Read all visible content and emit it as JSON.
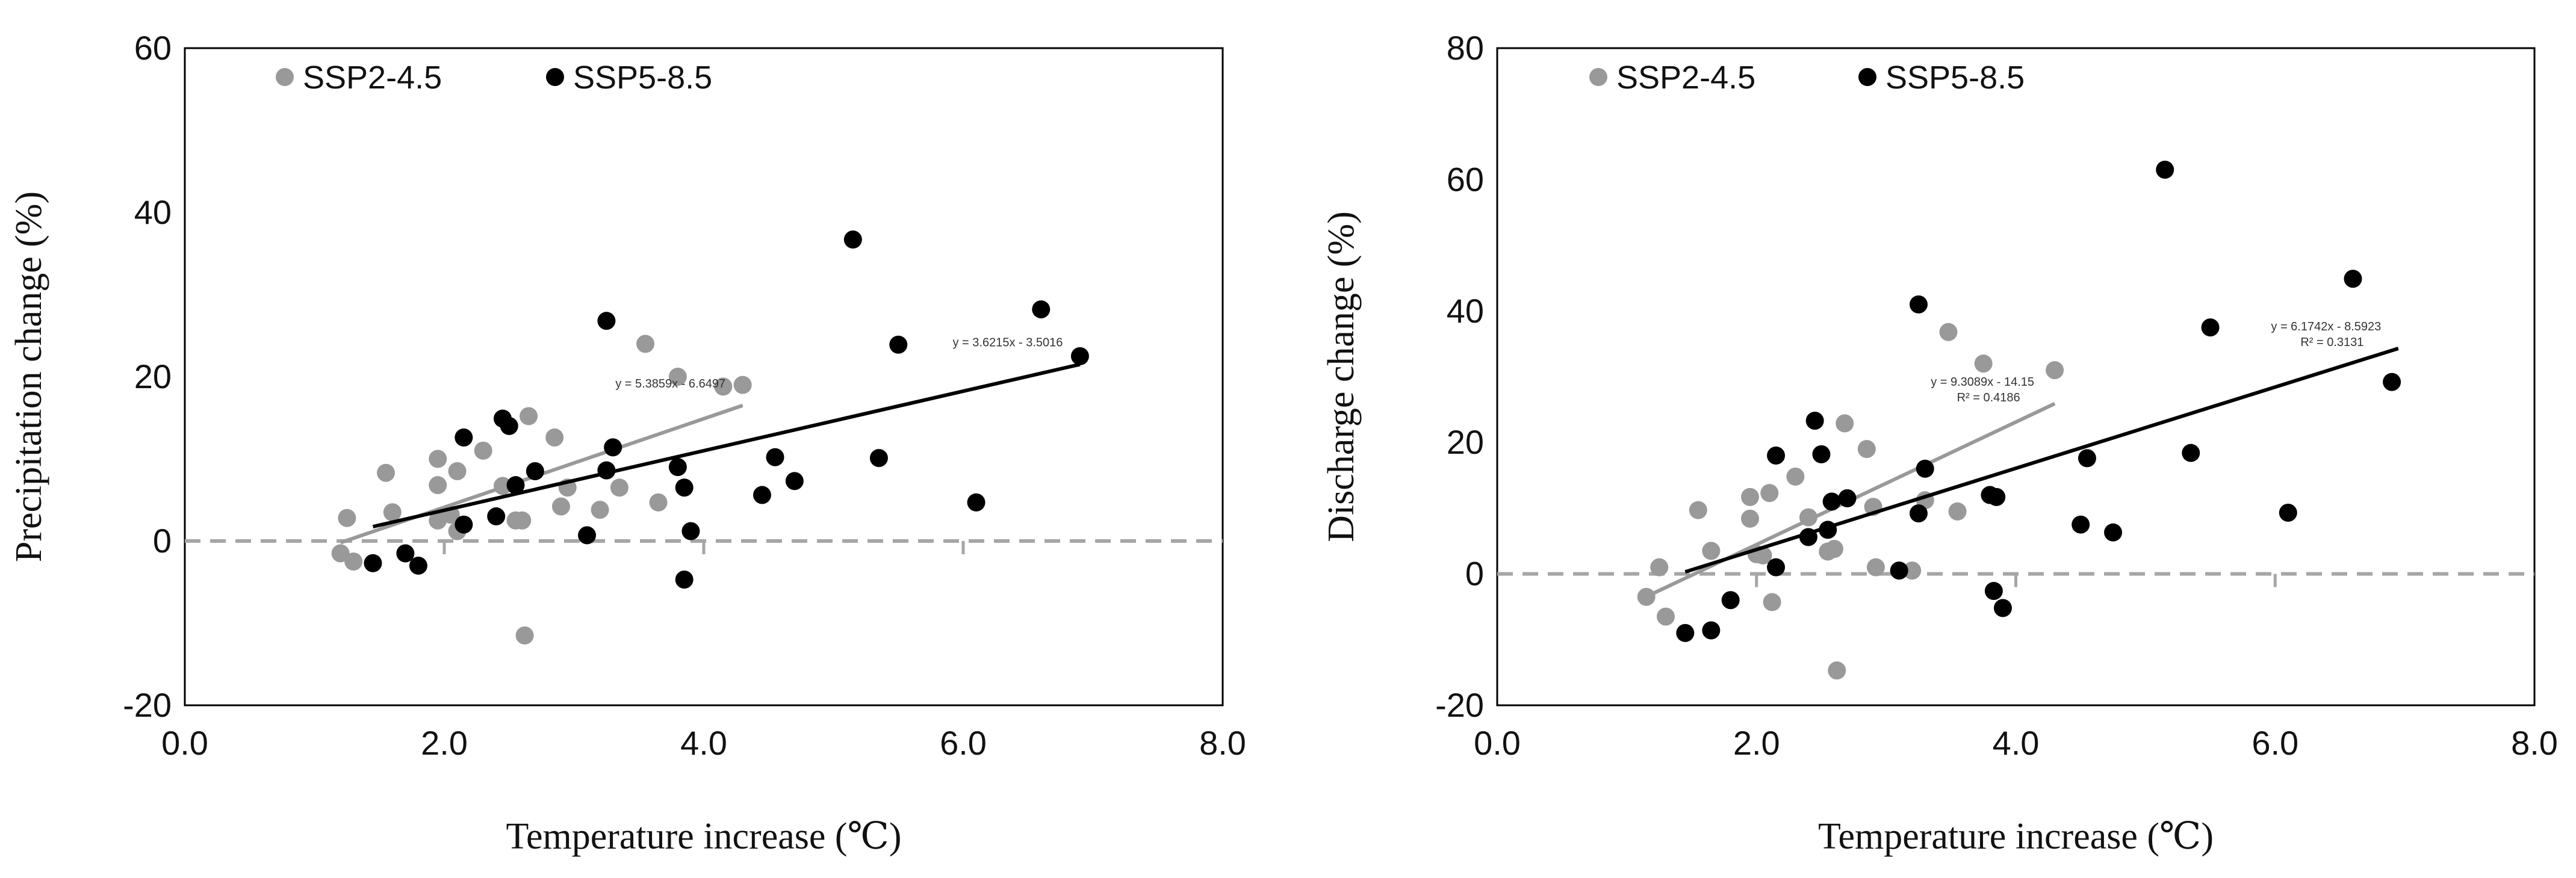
{
  "colors": {
    "ssp245": "#999999",
    "ssp585": "#000000",
    "zero_line": "#a6a6a6",
    "frame": "#000000"
  },
  "chart_data": [
    {
      "type": "scatter",
      "title": "",
      "xlabel": "Temperature  increase (℃)",
      "ylabel": "Precipitation change (%)",
      "xlim": [
        0,
        8
      ],
      "ylim": [
        -20,
        60
      ],
      "xticks": [
        0,
        2,
        4,
        6,
        8
      ],
      "xtick_labels": [
        "0.0",
        "2.0",
        "4.0",
        "6.0",
        "8.0"
      ],
      "yticks": [
        -20,
        0,
        20,
        40,
        60
      ],
      "ytick_labels": [
        "-20",
        "0",
        "20",
        "40",
        "60"
      ],
      "legend": [
        "SSP2-4.5",
        "SSP5-8.5"
      ],
      "reference_line_y": 0,
      "series": [
        {
          "name": "SSP2-4.5",
          "color": "#999999",
          "points": [
            [
              1.2,
              -1.5
            ],
            [
              1.25,
              2.8
            ],
            [
              1.3,
              -2.5
            ],
            [
              1.55,
              8.3
            ],
            [
              1.6,
              3.5
            ],
            [
              1.95,
              10
            ],
            [
              1.95,
              6.8
            ],
            [
              1.95,
              2.5
            ],
            [
              2.05,
              3.2
            ],
            [
              2.1,
              8.5
            ],
            [
              2.1,
              1.2
            ],
            [
              2.3,
              11
            ],
            [
              2.45,
              6.7
            ],
            [
              2.55,
              2.5
            ],
            [
              2.6,
              2.5
            ],
            [
              2.62,
              -11.5
            ],
            [
              2.65,
              15.2
            ],
            [
              2.85,
              12.6
            ],
            [
              2.9,
              4.2
            ],
            [
              2.95,
              6.5
            ],
            [
              3.2,
              3.8
            ],
            [
              3.35,
              6.5
            ],
            [
              3.55,
              24
            ],
            [
              3.65,
              4.7
            ],
            [
              3.8,
              20
            ],
            [
              4.15,
              18.8
            ],
            [
              4.3,
              19
            ]
          ],
          "trendline": {
            "x": [
              1.2,
              4.3
            ],
            "y": [
              -0.2,
              16.5
            ]
          },
          "equation": "y = 5.3859x - 6.6497"
        },
        {
          "name": "SSP5-8.5",
          "color": "#000000",
          "points": [
            [
              1.45,
              -2.7
            ],
            [
              1.7,
              -1.5
            ],
            [
              1.8,
              -3
            ],
            [
              2.15,
              12.6
            ],
            [
              2.15,
              2
            ],
            [
              2.4,
              3
            ],
            [
              2.45,
              14.9
            ],
            [
              2.5,
              14
            ],
            [
              2.55,
              6.8
            ],
            [
              2.7,
              8.5
            ],
            [
              3.1,
              0.7
            ],
            [
              3.25,
              26.8
            ],
            [
              3.25,
              8.6
            ],
            [
              3.3,
              11.4
            ],
            [
              3.8,
              9
            ],
            [
              3.85,
              6.5
            ],
            [
              3.85,
              -4.7
            ],
            [
              3.9,
              1.2
            ],
            [
              4.45,
              5.6
            ],
            [
              4.55,
              10.2
            ],
            [
              4.7,
              7.3
            ],
            [
              5.15,
              36.7
            ],
            [
              5.35,
              10.1
            ],
            [
              5.5,
              23.9
            ],
            [
              6.1,
              4.7
            ],
            [
              6.6,
              28.2
            ],
            [
              6.9,
              22.5
            ]
          ],
          "trendline": {
            "x": [
              1.45,
              6.9
            ],
            "y": [
              1.75,
              21.5
            ]
          },
          "equation": "y = 3.6215x - 3.5016"
        }
      ]
    },
    {
      "type": "scatter",
      "title": "",
      "xlabel": "Temperature  increase (℃)",
      "ylabel": "Discharge change (%)",
      "xlim": [
        0,
        8
      ],
      "ylim": [
        -20,
        80
      ],
      "xticks": [
        0,
        2,
        4,
        6,
        8
      ],
      "xtick_labels": [
        "0.0",
        "2.0",
        "4.0",
        "6.0",
        "8.0"
      ],
      "yticks": [
        -20,
        0,
        20,
        40,
        60,
        80
      ],
      "ytick_labels": [
        "-20",
        "0",
        "20",
        "40",
        "60",
        "80"
      ],
      "legend": [
        "SSP2-4.5",
        "SSP5-8.5"
      ],
      "reference_line_y": 0,
      "series": [
        {
          "name": "SSP2-4.5",
          "color": "#999999",
          "points": [
            [
              1.15,
              -3.5
            ],
            [
              1.25,
              1
            ],
            [
              1.3,
              -6.5
            ],
            [
              1.55,
              9.7
            ],
            [
              1.65,
              3.5
            ],
            [
              1.95,
              11.7
            ],
            [
              1.95,
              8.4
            ],
            [
              2,
              3
            ],
            [
              2.05,
              2.8
            ],
            [
              2.1,
              12.3
            ],
            [
              2.12,
              -4.3
            ],
            [
              2.3,
              14.8
            ],
            [
              2.4,
              8.6
            ],
            [
              2.55,
              3.4
            ],
            [
              2.6,
              3.8
            ],
            [
              2.62,
              -14.7
            ],
            [
              2.68,
              22.9
            ],
            [
              2.85,
              19
            ],
            [
              2.9,
              10.2
            ],
            [
              2.92,
              1
            ],
            [
              3.2,
              0.5
            ],
            [
              3.3,
              11.2
            ],
            [
              3.48,
              36.8
            ],
            [
              3.55,
              9.5
            ],
            [
              3.75,
              32
            ],
            [
              4.3,
              31
            ]
          ],
          "trendline": {
            "x": [
              1.2,
              4.3
            ],
            "y": [
              -3.0,
              25.9
            ]
          },
          "equation": "y = 9.3089x - 14.15",
          "r2": "R² = 0.4186"
        },
        {
          "name": "SSP5-8.5",
          "color": "#000000",
          "points": [
            [
              1.45,
              -9
            ],
            [
              1.65,
              -8.6
            ],
            [
              1.8,
              -4
            ],
            [
              2.15,
              18
            ],
            [
              2.15,
              1
            ],
            [
              2.4,
              5.6
            ],
            [
              2.45,
              23.3
            ],
            [
              2.5,
              18.2
            ],
            [
              2.55,
              6.7
            ],
            [
              2.58,
              11
            ],
            [
              2.7,
              11.5
            ],
            [
              3.1,
              0.5
            ],
            [
              3.25,
              41
            ],
            [
              3.25,
              9.2
            ],
            [
              3.3,
              16
            ],
            [
              3.8,
              12
            ],
            [
              3.83,
              -2.6
            ],
            [
              3.85,
              11.7
            ],
            [
              3.9,
              -5.2
            ],
            [
              4.5,
              7.5
            ],
            [
              4.55,
              17.6
            ],
            [
              4.75,
              6.3
            ],
            [
              5.15,
              61.5
            ],
            [
              5.35,
              18.4
            ],
            [
              5.5,
              37.5
            ],
            [
              6.1,
              9.3
            ],
            [
              6.6,
              44.9
            ],
            [
              6.9,
              29.2
            ]
          ],
          "trendline": {
            "x": [
              1.45,
              6.95
            ],
            "y": [
              0.3,
              34.3
            ]
          },
          "equation": "y = 6.1742x - 8.5923",
          "r2": "R² = 0.3131"
        }
      ]
    }
  ]
}
